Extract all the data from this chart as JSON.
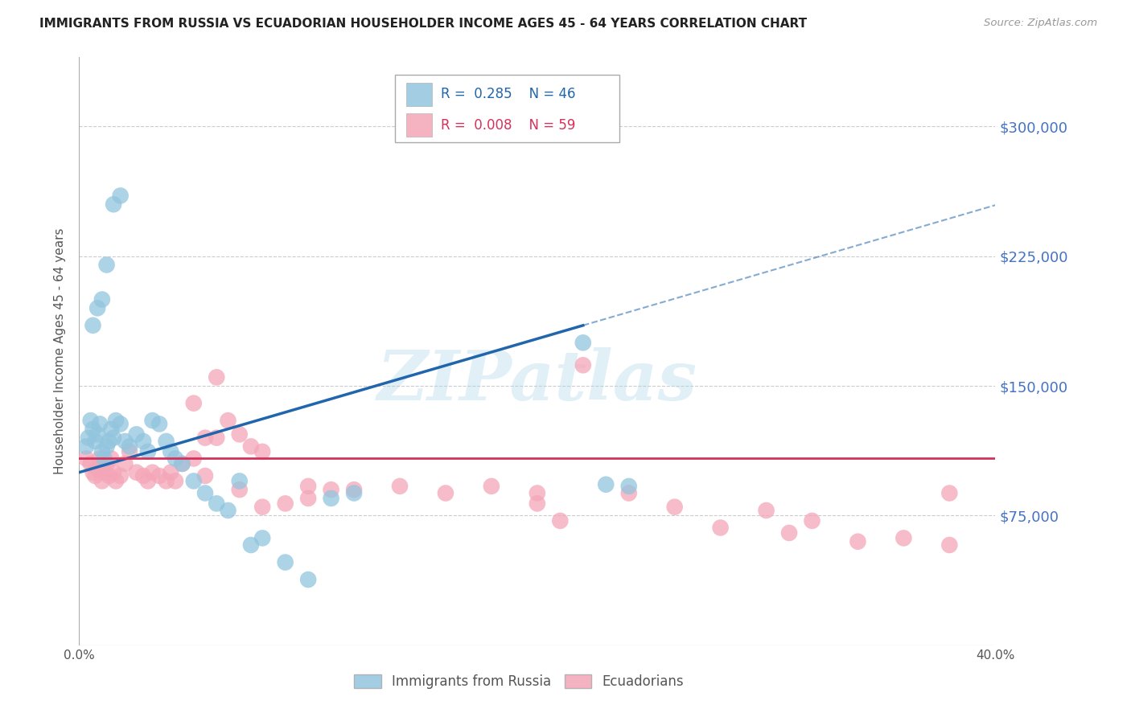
{
  "title": "IMMIGRANTS FROM RUSSIA VS ECUADORIAN HOUSEHOLDER INCOME AGES 45 - 64 YEARS CORRELATION CHART",
  "source": "Source: ZipAtlas.com",
  "ylabel": "Householder Income Ages 45 - 64 years",
  "xlim": [
    0.0,
    0.4
  ],
  "ylim": [
    0,
    340000
  ],
  "yticks": [
    75000,
    150000,
    225000,
    300000
  ],
  "ytick_labels": [
    "$75,000",
    "$150,000",
    "$225,000",
    "$300,000"
  ],
  "xticks": [
    0.0,
    0.05,
    0.1,
    0.15,
    0.2,
    0.25,
    0.3,
    0.35,
    0.4
  ],
  "xtick_labels": [
    "0.0%",
    "",
    "",
    "",
    "",
    "",
    "",
    "",
    "40.0%"
  ],
  "blue_color": "#92c5de",
  "pink_color": "#f4a6b8",
  "blue_line_color": "#2166ac",
  "pink_line_color": "#d6315b",
  "blue_R": 0.285,
  "blue_N": 46,
  "pink_R": 0.008,
  "pink_N": 59,
  "background_color": "#ffffff",
  "grid_color": "#cccccc",
  "watermark": "ZIPatlas",
  "blue_scatter_x": [
    0.003,
    0.004,
    0.005,
    0.006,
    0.007,
    0.008,
    0.009,
    0.01,
    0.011,
    0.012,
    0.013,
    0.014,
    0.015,
    0.016,
    0.018,
    0.02,
    0.022,
    0.025,
    0.028,
    0.03,
    0.032,
    0.035,
    0.038,
    0.04,
    0.042,
    0.045,
    0.05,
    0.055,
    0.06,
    0.065,
    0.07,
    0.075,
    0.08,
    0.09,
    0.1,
    0.11,
    0.12,
    0.006,
    0.008,
    0.01,
    0.012,
    0.015,
    0.018,
    0.22,
    0.23,
    0.24
  ],
  "blue_scatter_y": [
    115000,
    120000,
    130000,
    125000,
    118000,
    122000,
    128000,
    112000,
    108000,
    115000,
    118000,
    125000,
    120000,
    130000,
    128000,
    118000,
    115000,
    122000,
    118000,
    112000,
    130000,
    128000,
    118000,
    112000,
    108000,
    105000,
    95000,
    88000,
    82000,
    78000,
    95000,
    58000,
    62000,
    48000,
    38000,
    85000,
    88000,
    185000,
    195000,
    200000,
    220000,
    255000,
    260000,
    175000,
    93000,
    92000
  ],
  "pink_scatter_x": [
    0.003,
    0.005,
    0.006,
    0.007,
    0.008,
    0.009,
    0.01,
    0.011,
    0.012,
    0.013,
    0.014,
    0.015,
    0.016,
    0.018,
    0.02,
    0.022,
    0.025,
    0.028,
    0.03,
    0.032,
    0.035,
    0.038,
    0.04,
    0.042,
    0.045,
    0.05,
    0.055,
    0.06,
    0.065,
    0.07,
    0.075,
    0.08,
    0.1,
    0.12,
    0.14,
    0.16,
    0.18,
    0.2,
    0.22,
    0.24,
    0.26,
    0.28,
    0.3,
    0.31,
    0.32,
    0.34,
    0.36,
    0.38,
    0.05,
    0.055,
    0.06,
    0.07,
    0.08,
    0.09,
    0.1,
    0.11,
    0.2,
    0.21,
    0.38
  ],
  "pink_scatter_y": [
    108000,
    105000,
    100000,
    98000,
    102000,
    108000,
    95000,
    100000,
    105000,
    98000,
    108000,
    100000,
    95000,
    98000,
    105000,
    112000,
    100000,
    98000,
    95000,
    100000,
    98000,
    95000,
    100000,
    95000,
    105000,
    108000,
    98000,
    120000,
    130000,
    122000,
    115000,
    112000,
    92000,
    90000,
    92000,
    88000,
    92000,
    88000,
    162000,
    88000,
    80000,
    68000,
    78000,
    65000,
    72000,
    60000,
    62000,
    58000,
    140000,
    120000,
    155000,
    90000,
    80000,
    82000,
    85000,
    90000,
    82000,
    72000,
    88000
  ]
}
